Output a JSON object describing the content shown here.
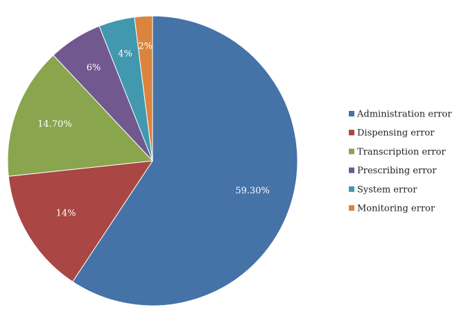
{
  "chart_data": {
    "type": "pie",
    "title": "",
    "categories": [
      "Administration  error",
      "Dispensing  error",
      "Transcription  error",
      "Prescribing error",
      "System error",
      "Monitoring error"
    ],
    "values": [
      59.3,
      14,
      14.7,
      6,
      4,
      2
    ],
    "value_labels": [
      "59.30%",
      "14%",
      "14.70%",
      "6%",
      "4%",
      "2%"
    ],
    "colors": [
      "#4572A7",
      "#AA4643",
      "#89A54E",
      "#71588F",
      "#4198AF",
      "#DB843D"
    ],
    "start_angle_deg": 0,
    "direction": "clockwise",
    "legend_position": "right"
  }
}
